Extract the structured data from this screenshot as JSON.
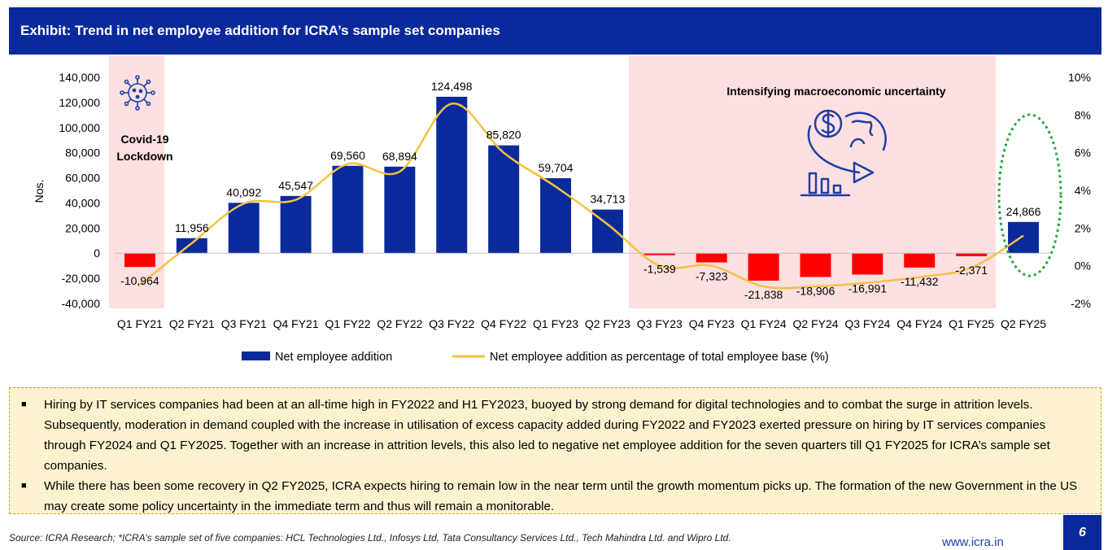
{
  "exhibit": {
    "title": "Exhibit: Trend in net employee addition for ICRA’s sample set companies"
  },
  "annotations": {
    "covid_line1": "Covid-19",
    "covid_line2": "Lockdown",
    "uncertainty": "Intensifying macroeconomic uncertainty"
  },
  "chart_data": {
    "type": "bar",
    "categories": [
      "Q1 FY21",
      "Q2 FY21",
      "Q3 FY21",
      "Q4 FY21",
      "Q1 FY22",
      "Q2 FY22",
      "Q3 FY22",
      "Q4 FY22",
      "Q1 FY23",
      "Q2 FY23",
      "Q3 FY23",
      "Q4 FY23",
      "Q1 FY24",
      "Q2 FY24",
      "Q3 FY24",
      "Q4 FY24",
      "Q1 FY25",
      "Q2 FY25"
    ],
    "series": [
      {
        "name": "Net employee addition",
        "type": "bar",
        "axis": "left",
        "values": [
          -10964,
          11956,
          40092,
          45547,
          69560,
          68894,
          124498,
          85820,
          59704,
          34713,
          -1539,
          -7323,
          -21838,
          -18906,
          -16991,
          -11432,
          -2371,
          24866
        ],
        "labels": [
          "-10,964",
          "11,956",
          "40,092",
          "45,547",
          "69,560",
          "68,894",
          "124,498",
          "85,820",
          "59,704",
          "34,713",
          "-1,539",
          "-7,323",
          "-21,838",
          "-18,906",
          "-16,991",
          "-11,432",
          "-2,371",
          "24,866"
        ]
      },
      {
        "name": "Net employee addition as percentage of total employee base (%)",
        "type": "line",
        "axis": "right",
        "values": [
          -1.0,
          1.2,
          3.3,
          3.5,
          5.4,
          5.0,
          8.6,
          6.0,
          4.2,
          2.2,
          0.0,
          0.0,
          -1.1,
          -1.1,
          -0.9,
          -0.6,
          -0.1,
          1.6
        ]
      }
    ],
    "ylabel": "Nos.",
    "ylim": [
      -40000,
      140000
    ],
    "y_ticks": [
      "140,000",
      "120,000",
      "100,000",
      "80,000",
      "60,000",
      "40,000",
      "20,000",
      "0",
      "-20,000",
      "-40,000"
    ],
    "y2lim": [
      -2,
      10
    ],
    "y2_ticks": [
      "10%",
      "8%",
      "6%",
      "4%",
      "2%",
      "0%",
      "-2%"
    ],
    "legend_position": "bottom",
    "grid": false,
    "colors": {
      "bar_positive": "#0a2a9c",
      "bar_negative": "#ff0000",
      "line": "#f5c242",
      "shade": "#fde0e0"
    }
  },
  "commentary": {
    "bullets": [
      "Hiring by IT services companies had been at an all-time high in FY2022 and H1 FY2023, buoyed by strong demand for digital technologies and to combat the surge in attrition levels. Subsequently, moderation in demand coupled with the increase in utilisation of excess capacity added during FY2022 and FY2023 exerted pressure on hiring by IT services companies through FY2024 and Q1 FY2025. Together with an increase in attrition levels, this also led to negative net employee addition for the seven quarters till Q1 FY2025 for ICRA’s sample set companies.",
      "While there has been some recovery in Q2 FY2025, ICRA expects hiring to remain low in the near term until the growth momentum picks up. The formation of the new Government in the US may create some policy uncertainty in the immediate term and thus will remain a monitorable."
    ]
  },
  "footer": {
    "source": "Source: ICRA Research; *ICRA’s sample set of five companies: HCL Technologies Ltd., Infosys Ltd, Tata Consultancy Services Ltd., Tech Mahindra Ltd. and Wipro Ltd.",
    "website": "www.icra.in",
    "page_number": "6"
  },
  "icons": {
    "covid": "virus-icon",
    "uncertainty": "dollar-globe-decline-icon"
  }
}
